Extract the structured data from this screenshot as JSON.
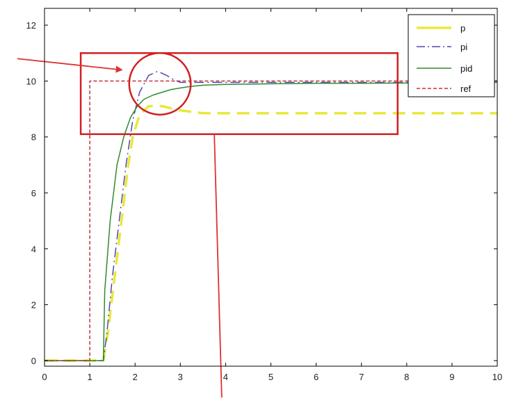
{
  "chart_data": {
    "type": "line",
    "title": "",
    "xlabel": "",
    "ylabel": "",
    "xlim": [
      0,
      10
    ],
    "ylim": [
      -0.2,
      12.6
    ],
    "x_ticks": [
      0,
      1,
      2,
      3,
      4,
      5,
      6,
      7,
      8,
      9,
      10
    ],
    "y_ticks": [
      0,
      2,
      4,
      6,
      8,
      10,
      12
    ],
    "grid": false,
    "legend_position": "top-right",
    "series": [
      {
        "name": "p",
        "color": "#e8e83a",
        "style": "dash-thick",
        "x": [
          0,
          1.3,
          1.4,
          1.55,
          1.7,
          1.85,
          1.95,
          2.1,
          2.3,
          2.6,
          3.0,
          3.5,
          4.0,
          5.0,
          6.0,
          7.0,
          8.0,
          9.0,
          10.0
        ],
        "y": [
          0,
          0,
          1.0,
          3.0,
          5.0,
          7.0,
          8.0,
          8.8,
          9.1,
          9.1,
          8.95,
          8.85,
          8.85,
          8.85,
          8.85,
          8.85,
          8.85,
          8.85,
          8.85
        ]
      },
      {
        "name": "pi",
        "color": "#4a4ab0",
        "style": "dashdot",
        "x": [
          0,
          1.3,
          1.38,
          1.5,
          1.65,
          1.8,
          1.95,
          2.1,
          2.3,
          2.5,
          2.7,
          2.85,
          3.0,
          3.2,
          4.0,
          5.0,
          6.0,
          7.0,
          8.0,
          9.0,
          10.0
        ],
        "y": [
          0,
          0,
          1.0,
          3.0,
          5.0,
          7.0,
          8.6,
          9.6,
          10.2,
          10.35,
          10.2,
          10.05,
          9.95,
          9.95,
          9.95,
          9.95,
          9.95,
          9.95,
          9.95,
          9.95,
          9.95
        ]
      },
      {
        "name": "pid",
        "color": "#2f8a2f",
        "style": "solid",
        "x": [
          0,
          1.3,
          1.33,
          1.45,
          1.6,
          1.75,
          1.9,
          2.05,
          2.2,
          2.4,
          2.6,
          2.8,
          3.0,
          3.2,
          3.5,
          4.0,
          5.0,
          6.0,
          7.0,
          8.0,
          9.0,
          10.0
        ],
        "y": [
          0,
          0,
          2.5,
          5.0,
          7.0,
          8.0,
          8.7,
          9.1,
          9.35,
          9.5,
          9.6,
          9.7,
          9.75,
          9.8,
          9.85,
          9.88,
          9.9,
          9.92,
          9.92,
          9.93,
          9.94,
          9.95
        ]
      },
      {
        "name": "ref",
        "color": "#c03040",
        "style": "dashed",
        "x": [
          0,
          1.0,
          1.0,
          10.0
        ],
        "y": [
          0,
          0,
          10.0,
          10.0
        ]
      }
    ],
    "annotations": [
      {
        "type": "rectangle",
        "x_range": [
          0.8,
          7.8
        ],
        "y_range": [
          8.1,
          11.0
        ],
        "color": "#d02020"
      },
      {
        "type": "circle",
        "center": [
          2.55,
          9.9
        ],
        "radius_x": 0.68,
        "color": "#d02020"
      },
      {
        "type": "arrow",
        "from": [
          -0.6,
          10.8
        ],
        "to": [
          1.7,
          10.4
        ],
        "color": "#e03030"
      },
      {
        "type": "arrow",
        "from": [
          3.75,
          8.1
        ],
        "to": [
          3.92,
          -1.6
        ],
        "color": "#e03030"
      }
    ]
  },
  "legend": {
    "items": [
      "p",
      "pi",
      "pid",
      "ref"
    ]
  }
}
